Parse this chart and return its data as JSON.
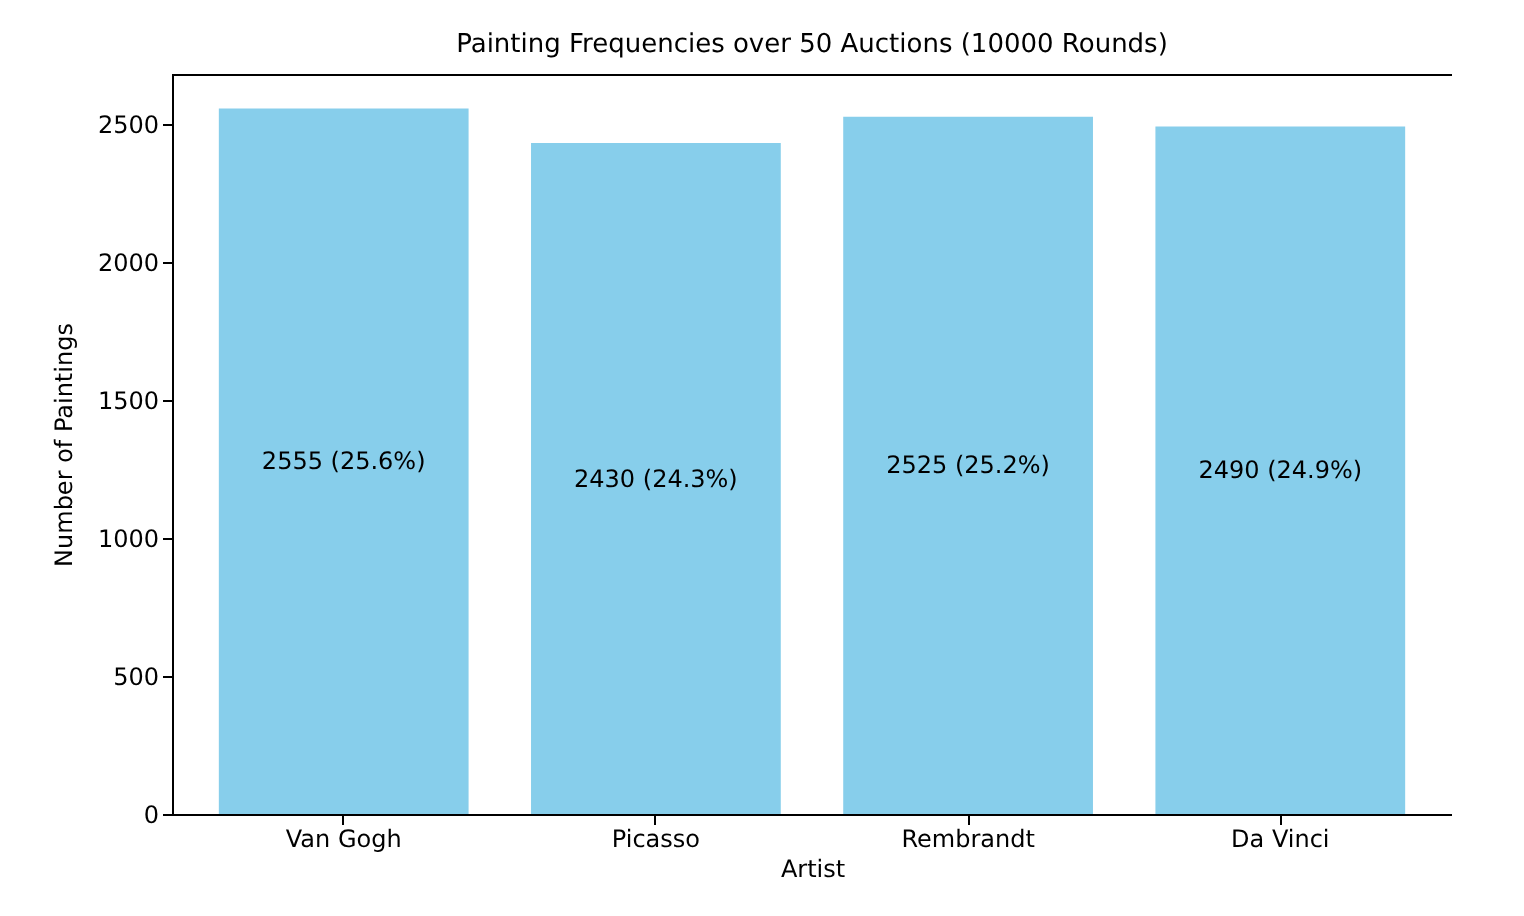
{
  "chart_data": {
    "type": "bar",
    "title": "Painting Frequencies over 50 Auctions (10000 Rounds)",
    "xlabel": "Artist",
    "ylabel": "Number of Paintings",
    "categories": [
      "Van Gogh",
      "Picasso",
      "Rembrandt",
      "Da Vinci"
    ],
    "values": [
      2555,
      2430,
      2525,
      2490
    ],
    "value_labels": [
      "2555 (25.6%)",
      "2430 (24.3%)",
      "2525 (25.2%)",
      "2490 (24.9%)"
    ],
    "color": "#87ceeb",
    "ylim": [
      0,
      2680
    ],
    "yticks": [
      0,
      500,
      1000,
      1500,
      2000,
      2500
    ],
    "grid": false
  }
}
